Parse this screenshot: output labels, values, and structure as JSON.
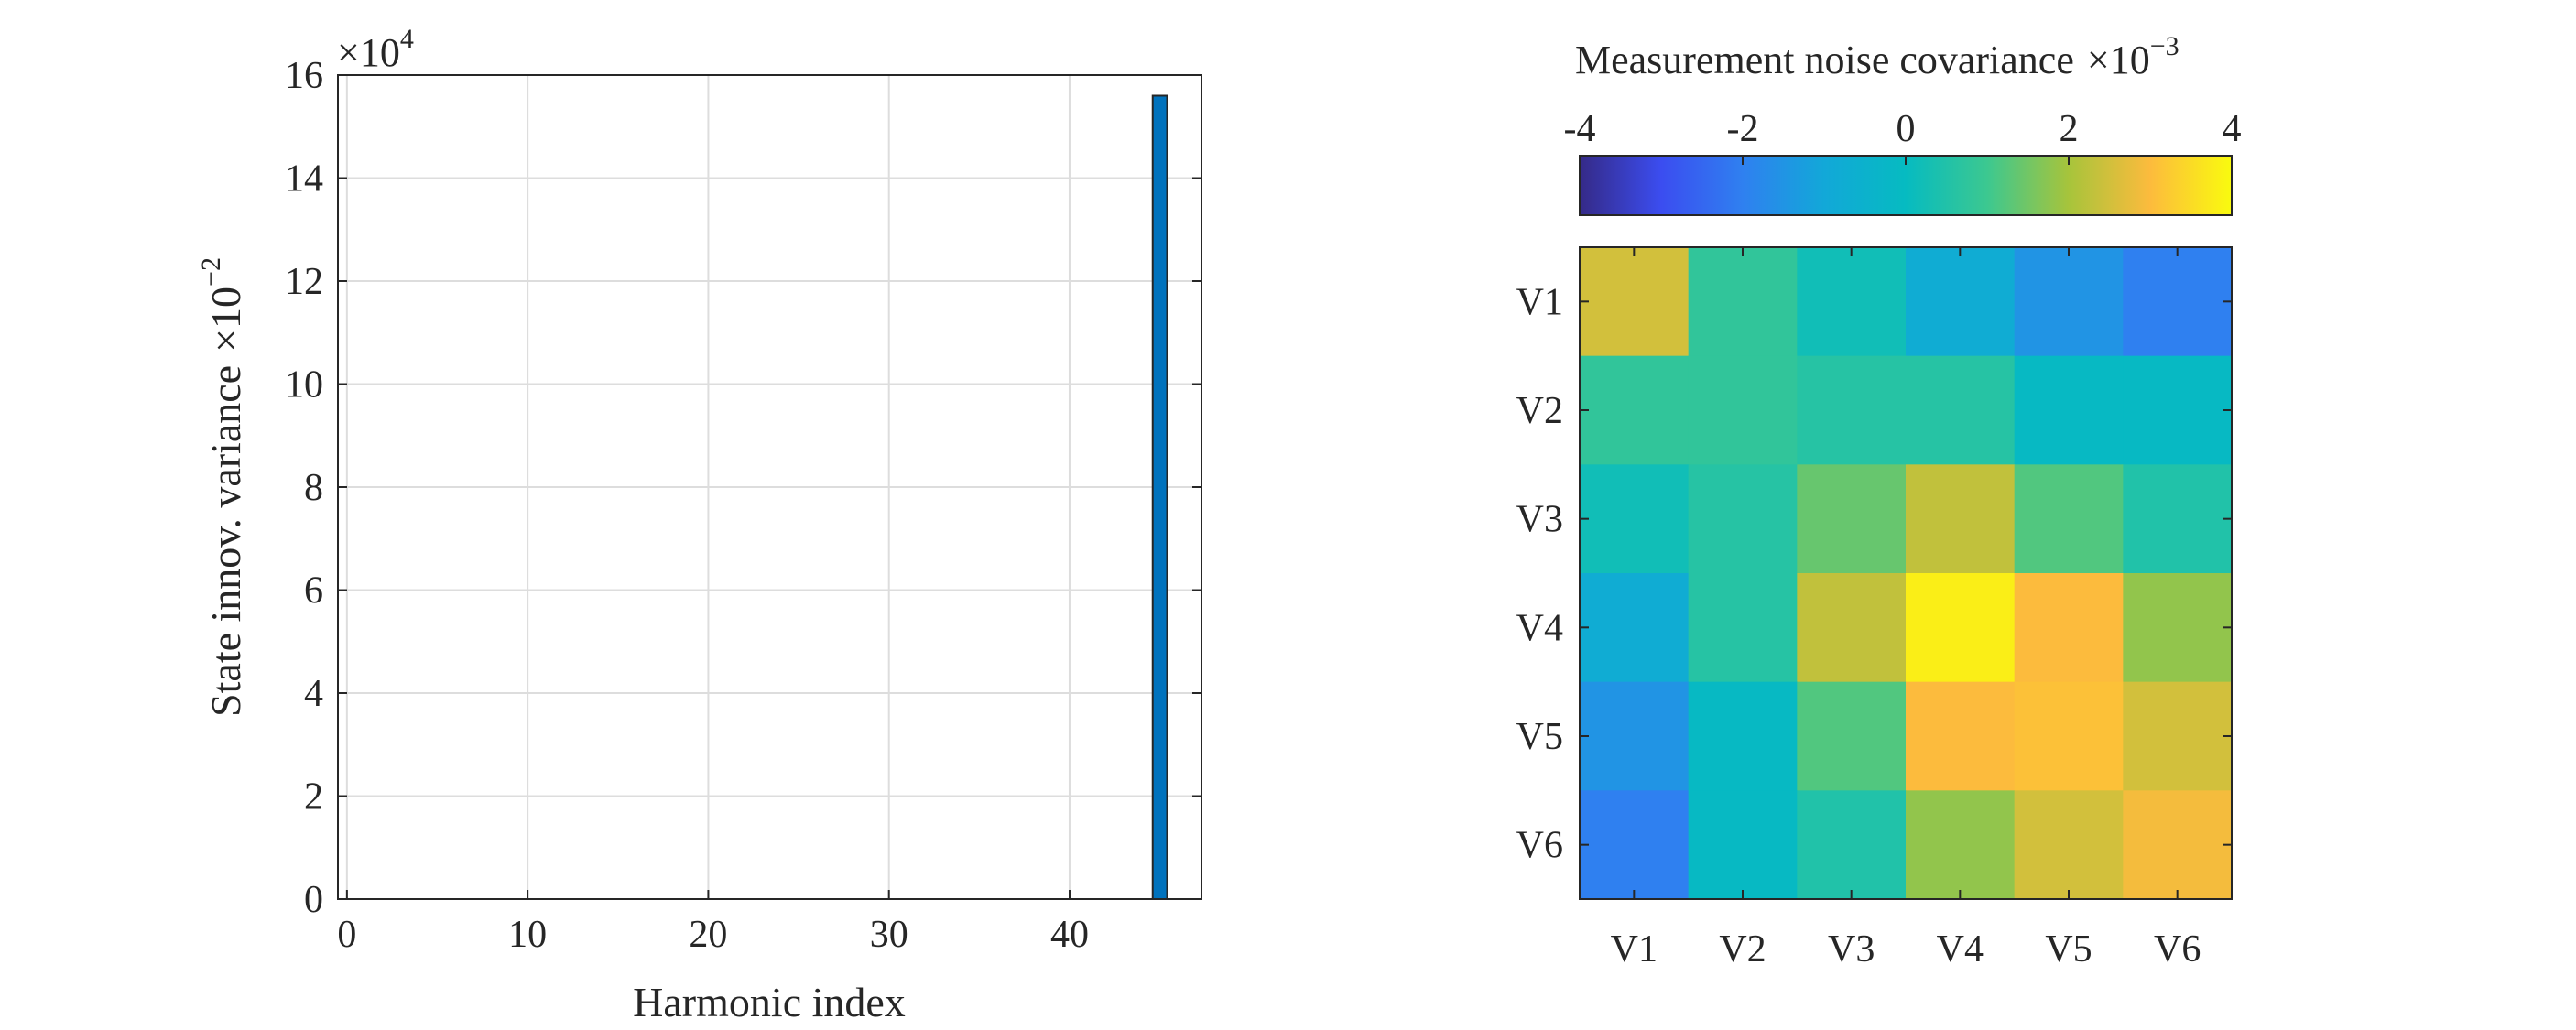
{
  "chart_data": [
    {
      "type": "bar",
      "xlabel": "Harmonic index",
      "ylabel": "State innov. variance",
      "ylabel_multiplier": {
        "base": "×10",
        "exp": "−2"
      },
      "y_multiplier": {
        "base": "×10",
        "exp": "4"
      },
      "xlim": [
        -0.5,
        47.3
      ],
      "ylim": [
        0,
        16
      ],
      "xticks": [
        0,
        10,
        20,
        30,
        40
      ],
      "yticks": [
        0,
        2,
        4,
        6,
        8,
        10,
        12,
        14,
        16
      ],
      "grid": true,
      "bar_color": "#0072BD",
      "x": [
        45
      ],
      "values": [
        15.6
      ]
    },
    {
      "type": "heatmap",
      "title": "Measurement noise covariance",
      "title_multiplier": {
        "base": "×10",
        "exp": "−3"
      },
      "row_labels": [
        "V1",
        "V2",
        "V3",
        "V4",
        "V5",
        "V6"
      ],
      "col_labels": [
        "V1",
        "V2",
        "V3",
        "V4",
        "V5",
        "V6"
      ],
      "colorbar": {
        "location": "top",
        "ticks": [
          "-4",
          "-2",
          "0",
          "2",
          "4"
        ],
        "range": [
          -4,
          4
        ]
      },
      "colormap": "parula",
      "values": [
        [
          2.5,
          0.8,
          0.2,
          -0.8,
          -1.5,
          -2.0
        ],
        [
          0.8,
          0.8,
          0.6,
          0.6,
          -0.1,
          -0.1
        ],
        [
          0.2,
          0.6,
          1.4,
          2.3,
          1.2,
          0.5
        ],
        [
          -0.8,
          0.6,
          2.3,
          3.8,
          3.0,
          1.8
        ],
        [
          -1.5,
          -0.1,
          1.2,
          3.0,
          3.1,
          2.5
        ],
        [
          -2.0,
          -0.1,
          0.5,
          1.8,
          2.5,
          2.9
        ]
      ]
    }
  ]
}
